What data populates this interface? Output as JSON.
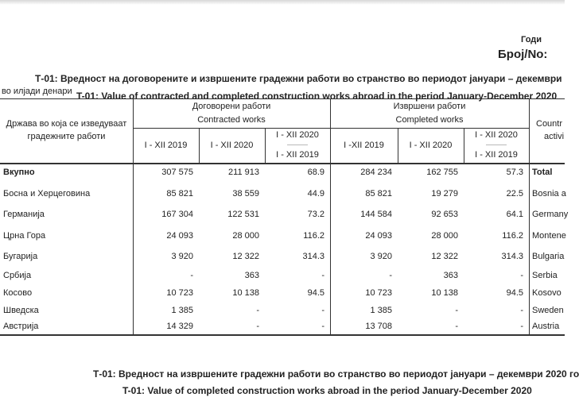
{
  "header": {
    "year_label": "Годи",
    "number_label": "Број/No:",
    "title_mk": "Т-01: Вредност на договорените и извршените градежни работи во странство во периодот јануари – декември",
    "title_en": "T-01: Value of contracted and completed construction works abroad in the period January-December 2020"
  },
  "unit": "во илјади денари",
  "table": {
    "country_header_mk": [
      "Држава во која се изведуваат",
      "градежните работи"
    ],
    "contracted_mk": "Договорени работи",
    "contracted_en": "Contracted works",
    "completed_mk": "Извршени работи",
    "completed_en": "Completed works",
    "country_header_en": [
      "Countr",
      "activi"
    ],
    "contracted_cols": [
      "I - XII 2019",
      "I -  XII 2020"
    ],
    "completed_cols": [
      "I -XII 2019",
      "I - XII 2020"
    ],
    "index_top": "I - XII 2020",
    "index_sep": "-------------",
    "index_bottom": "I -  XII 2019",
    "rows": [
      {
        "mk": "Вкупно",
        "c19": "307 575",
        "c20": "211 913",
        "ci": "68.9",
        "e19": "284 234",
        "e20": "162 755",
        "ei": "57.3",
        "en": "Total",
        "bold": true
      },
      {
        "mk": "Босна и Херцеговина",
        "c19": "85 821",
        "c20": "38 559",
        "ci": "44.9",
        "e19": "85 821",
        "e20": "19 279",
        "ei": "22.5",
        "en": "Bosnia a"
      },
      {
        "mk": "Германија",
        "c19": "167 304",
        "c20": "122 531",
        "ci": "73.2",
        "e19": "144 584",
        "e20": "92 653",
        "ei": "64.1",
        "en": "Germany"
      },
      {
        "mk": "Црна Гора",
        "c19": "24 093",
        "c20": "28 000",
        "ci": "116.2",
        "e19": "24 093",
        "e20": "28 000",
        "ei": "116.2",
        "en": "Montene"
      },
      {
        "mk": "Бугарија",
        "c19": "3 920",
        "c20": "12 322",
        "ci": "314.3",
        "e19": "3 920",
        "e20": "12 322",
        "ei": "314.3",
        "en": "Bulgaria"
      },
      {
        "mk": "Србија",
        "c19": "-",
        "c20": "363",
        "ci": "-",
        "e19": "-",
        "e20": "363",
        "ei": "-",
        "en": "Serbia"
      },
      {
        "mk": "Косово",
        "c19": "10 723",
        "c20": "10 138",
        "ci": "94.5",
        "e19": "10 723",
        "e20": "10 138",
        "ei": "94.5",
        "en": "Kosovo"
      },
      {
        "mk": "Шведска",
        "c19": "1 385",
        "c20": "-",
        "ci": "-",
        "e19": "1 385",
        "e20": "-",
        "ei": "-",
        "en": "Sweden"
      },
      {
        "mk": "Австрија",
        "c19": "14 329",
        "c20": "-",
        "ci": "-",
        "e19": "13 708",
        "e20": "-",
        "ei": "-",
        "en": "Austria"
      }
    ]
  },
  "footer": {
    "title_mk": "Т-01: Вредност на извршените градежни работи во странство во периодот јануари – декември 2020 го",
    "title_en": "T-01: Value of  completed construction works abroad in the period January-December 2020"
  }
}
